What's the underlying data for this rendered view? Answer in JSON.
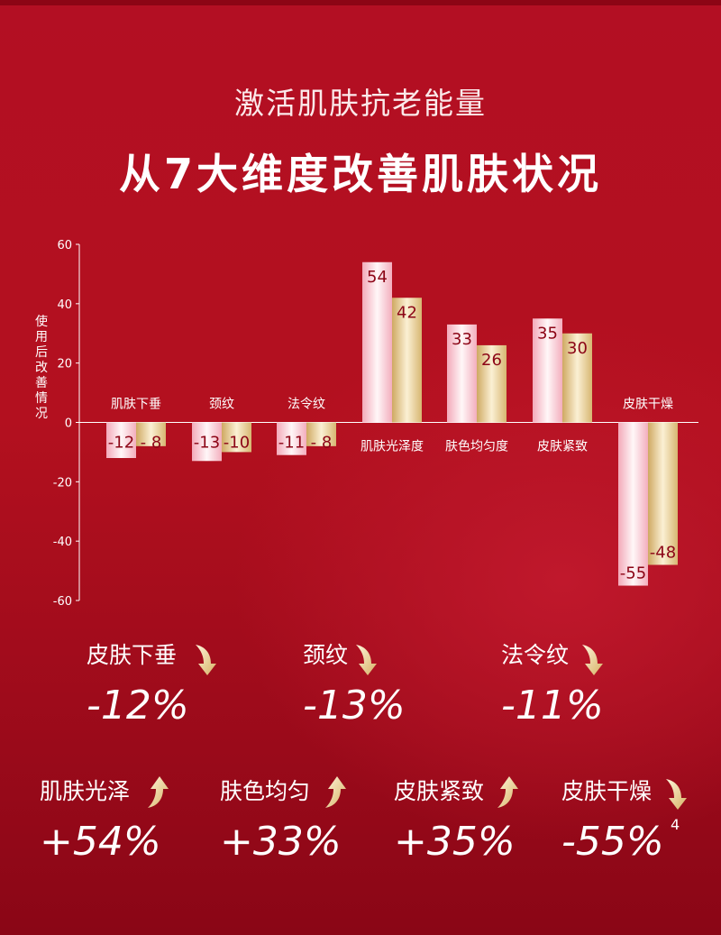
{
  "header": {
    "subtitle": "激活肌肤抗老能量",
    "title": "从7大维度改善肌肤状况"
  },
  "colors": {
    "background": "#b3101f",
    "series_pink": "#f7c4cf",
    "series_gold": "#e2c98f",
    "value_text": "#8c0516"
  },
  "chart_data": {
    "type": "bar",
    "ylabel": "使用后改善情况",
    "ylim": [
      -60,
      60
    ],
    "yticks": [
      60,
      40,
      20,
      0,
      -20,
      -40,
      -60
    ],
    "grid": false,
    "categories": [
      "肌肤下垂",
      "颈纹",
      "法令纹",
      "肌肤光泽度",
      "肤色均匀度",
      "皮肤紧致",
      "皮肤干燥"
    ],
    "series": [
      {
        "values": [
          -12,
          -13,
          -11,
          54,
          33,
          35,
          -55
        ],
        "value_labels": [
          "-12",
          "-13",
          "-11",
          "54",
          "33",
          "35",
          "-55"
        ]
      },
      {
        "values": [
          -8,
          -10,
          -8,
          42,
          26,
          30,
          -48
        ],
        "value_labels": [
          "- 8",
          "-10",
          "- 8",
          "42",
          "26",
          "30",
          "-48"
        ]
      }
    ]
  },
  "stats": [
    {
      "label": "皮肤下垂",
      "value": "-12%",
      "direction": "down",
      "icon": "arrow-down-icon"
    },
    {
      "label": "颈纹",
      "value": "-13%",
      "direction": "down",
      "icon": "arrow-down-icon"
    },
    {
      "label": "法令纹",
      "value": "-11%",
      "direction": "down",
      "icon": "arrow-down-icon"
    },
    {
      "label": "肌肤光泽",
      "value": "+54%",
      "direction": "up",
      "icon": "arrow-up-icon"
    },
    {
      "label": "肤色均匀",
      "value": "+33%",
      "direction": "up",
      "icon": "arrow-up-icon"
    },
    {
      "label": "皮肤紧致",
      "value": "+35%",
      "direction": "up",
      "icon": "arrow-up-icon"
    },
    {
      "label": "皮肤干燥",
      "value": "-55%",
      "direction": "down",
      "icon": "arrow-down-icon"
    }
  ],
  "footnote": "4"
}
